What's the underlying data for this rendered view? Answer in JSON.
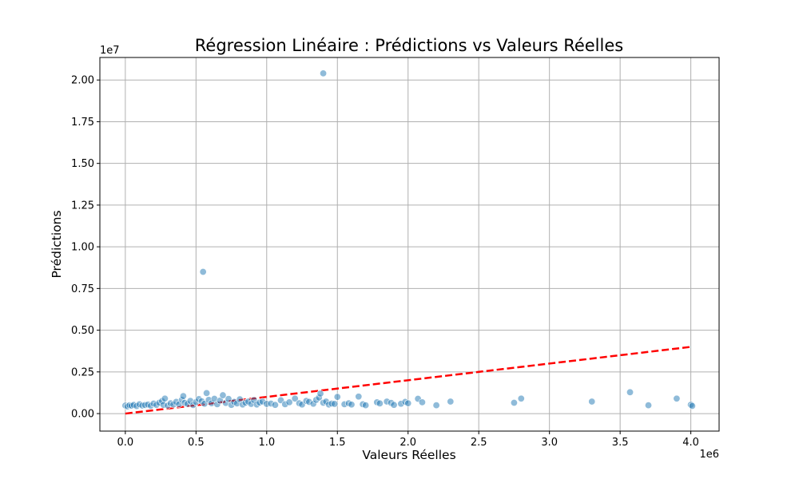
{
  "chart_data": {
    "type": "scatter",
    "title": "Régression Linéaire : Prédictions vs Valeurs Réelles",
    "xlabel": "Valeurs Réelles",
    "ylabel": "Prédictions",
    "x_offset_label": "1e6",
    "y_offset_label": "1e7",
    "xlim": [
      -180000,
      4200000
    ],
    "ylim": [
      -1050000,
      21350000
    ],
    "xticks": [
      0,
      500000,
      1000000,
      1500000,
      2000000,
      2500000,
      3000000,
      3500000,
      4000000
    ],
    "xtick_labels": [
      "0.0",
      "0.5",
      "1.0",
      "1.5",
      "2.0",
      "2.5",
      "3.0",
      "3.5",
      "4.0"
    ],
    "yticks": [
      0,
      2500000,
      5000000,
      7500000,
      10000000,
      12500000,
      15000000,
      17500000,
      20000000
    ],
    "ytick_labels": [
      "0.00",
      "0.25",
      "0.50",
      "0.75",
      "1.00",
      "1.25",
      "1.50",
      "1.75",
      "2.00"
    ],
    "grid": true,
    "point_color": "#1f77b4",
    "point_opacity": 0.5,
    "line_color": "#ff0000",
    "reference_line": {
      "x": [
        0,
        4000000
      ],
      "y": [
        0,
        4000000
      ],
      "style": "dashed"
    },
    "series": [
      {
        "name": "Prédictions",
        "x": [
          0,
          15000,
          30000,
          45000,
          60000,
          80000,
          100000,
          120000,
          140000,
          160000,
          180000,
          200000,
          220000,
          240000,
          260000,
          270000,
          280000,
          300000,
          320000,
          340000,
          360000,
          380000,
          400000,
          410000,
          420000,
          440000,
          460000,
          480000,
          500000,
          520000,
          540000,
          560000,
          575000,
          590000,
          610000,
          630000,
          650000,
          670000,
          690000,
          710000,
          730000,
          750000,
          770000,
          790000,
          810000,
          830000,
          850000,
          870000,
          890000,
          910000,
          930000,
          950000,
          970000,
          1000000,
          1030000,
          1060000,
          1100000,
          1130000,
          1160000,
          1200000,
          1230000,
          1250000,
          1280000,
          1300000,
          1330000,
          1350000,
          1370000,
          1380000,
          1400000,
          1420000,
          1440000,
          1460000,
          1480000,
          1500000,
          1550000,
          1580000,
          1600000,
          1650000,
          1680000,
          1700000,
          1780000,
          1800000,
          1850000,
          1880000,
          1900000,
          1950000,
          1980000,
          2000000,
          2070000,
          2100000,
          2200000,
          2300000,
          2750000,
          2800000,
          3300000,
          3570000,
          3700000,
          3900000,
          4000000,
          4010000,
          550000,
          1400000
        ],
        "y": [
          480000,
          430000,
          500000,
          470000,
          520000,
          450000,
          560000,
          480000,
          510000,
          540000,
          470000,
          600000,
          520000,
          650000,
          750000,
          520000,
          900000,
          480000,
          620000,
          540000,
          700000,
          560000,
          830000,
          1050000,
          640000,
          580000,
          760000,
          510000,
          690000,
          870000,
          740000,
          590000,
          1230000,
          820000,
          620000,
          890000,
          560000,
          780000,
          1100000,
          640000,
          880000,
          520000,
          700000,
          610000,
          860000,
          540000,
          650000,
          720000,
          580000,
          810000,
          540000,
          660000,
          720000,
          580000,
          600000,
          520000,
          800000,
          560000,
          680000,
          900000,
          620000,
          540000,
          760000,
          700000,
          590000,
          820000,
          960000,
          1200000,
          650000,
          720000,
          540000,
          600000,
          580000,
          1000000,
          560000,
          620000,
          540000,
          1020000,
          560000,
          500000,
          680000,
          610000,
          720000,
          640000,
          520000,
          590000,
          700000,
          620000,
          890000,
          680000,
          500000,
          720000,
          650000,
          900000,
          720000,
          1280000,
          500000,
          900000,
          530000,
          460000,
          8500000,
          20400000
        ]
      }
    ]
  }
}
